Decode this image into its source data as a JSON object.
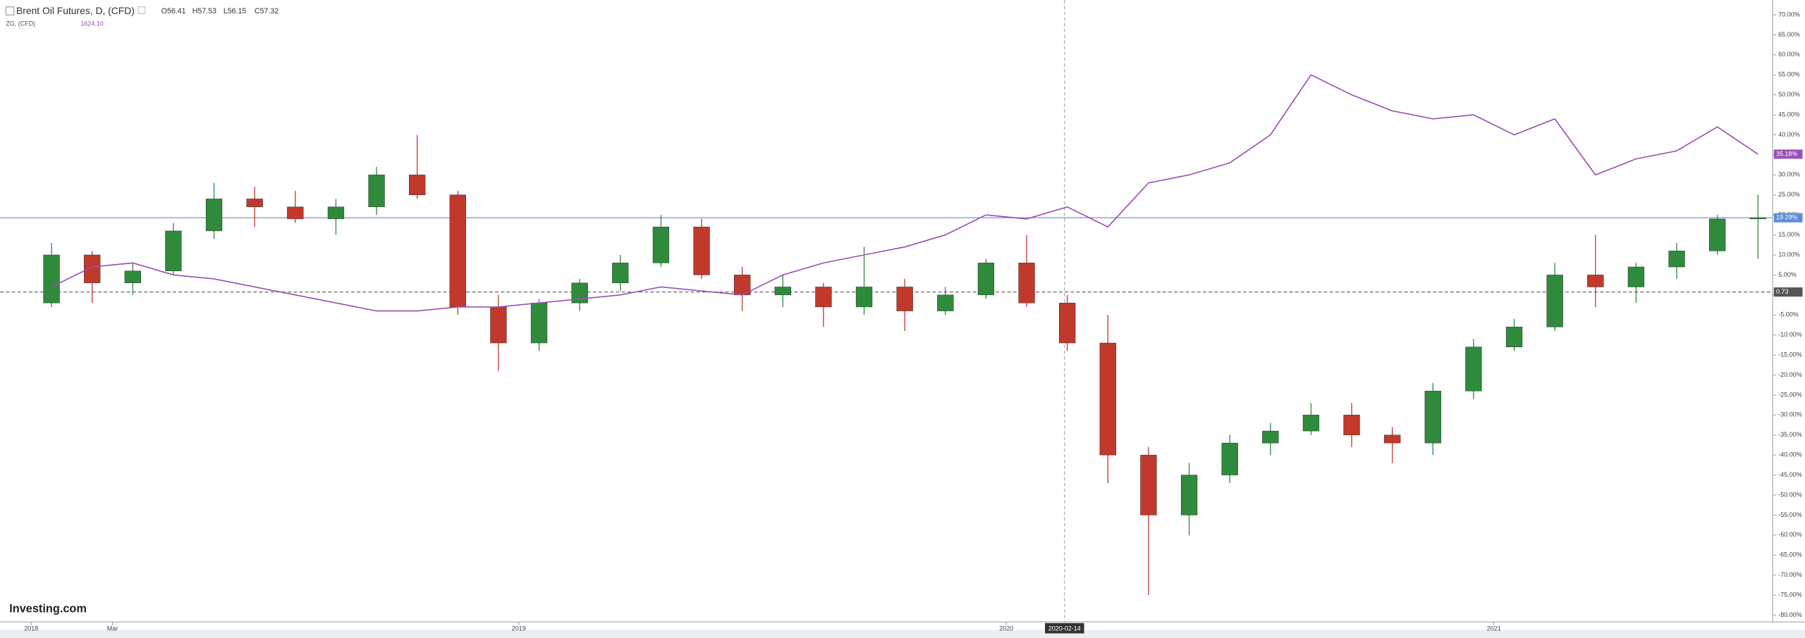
{
  "chart_data": {
    "type": "candlestick",
    "title": "Brent Oil Futures, D, (CFD)",
    "quote": [
      "O56.41",
      "H57.53",
      "L56.15",
      "C57.32"
    ],
    "x": [
      "2018-01",
      "2018-02",
      "2018-03",
      "2018-04",
      "2018-05",
      "2018-06",
      "2018-07",
      "2018-08",
      "2018-09",
      "2018-10",
      "2018-11",
      "2018-12",
      "2019-01",
      "2019-02",
      "2019-03",
      "2019-04",
      "2019-05",
      "2019-06",
      "2019-07",
      "2019-08",
      "2019-09",
      "2019-10",
      "2019-11",
      "2019-12",
      "2020-01",
      "2020-02",
      "2020-03",
      "2020-04",
      "2020-05",
      "2020-06",
      "2020-07",
      "2020-08",
      "2020-09",
      "2020-10",
      "2020-11",
      "2020-12",
      "2021-01",
      "2021-02",
      "2021-03",
      "2021-04",
      "2021-05",
      "2021-06",
      "2021-07"
    ],
    "series": [
      {
        "name": "Brent Oil Futures, D, (CFD)",
        "type": "candlestick",
        "up_color": "#2f8a3c",
        "down_color": "#c0392b",
        "open": [
          -2,
          10,
          3,
          6,
          16,
          24,
          22,
          19,
          22,
          30,
          25,
          -3,
          -12,
          -2,
          3,
          8,
          17,
          5,
          0,
          2,
          -3,
          2,
          -4,
          0,
          8,
          -2,
          -12,
          -40,
          -55,
          -45,
          -37,
          -34,
          -30,
          -35,
          -37,
          -24,
          -13,
          -8,
          5,
          2,
          7,
          11,
          19
        ],
        "high": [
          13,
          11,
          8,
          18,
          28,
          27,
          26,
          24,
          32,
          40,
          26,
          0,
          -1,
          4,
          10,
          20,
          19,
          7,
          5,
          3,
          12,
          4,
          2,
          9,
          15,
          0,
          -5,
          -38,
          -42,
          -35,
          -32,
          -27,
          -27,
          -33,
          -22,
          -11,
          -6,
          8,
          15,
          8,
          13,
          20,
          25
        ],
        "low": [
          -3,
          -2,
          0,
          5,
          14,
          17,
          18,
          15,
          20,
          24,
          -5,
          -19,
          -14,
          -4,
          1,
          7,
          4,
          -4,
          -3,
          -8,
          -5,
          -9,
          -5,
          -1,
          -3,
          -14,
          -47,
          -75,
          -60,
          -47,
          -40,
          -35,
          -38,
          -42,
          -40,
          -26,
          -14,
          -9,
          -3,
          -2,
          4,
          10,
          9
        ],
        "close": [
          10,
          3,
          6,
          16,
          24,
          22,
          19,
          22,
          30,
          25,
          -3,
          -12,
          -2,
          3,
          8,
          17,
          5,
          0,
          2,
          -3,
          2,
          -4,
          0,
          8,
          -2,
          -12,
          -40,
          -55,
          -45,
          -37,
          -34,
          -30,
          -35,
          -37,
          -24,
          -13,
          -8,
          5,
          2,
          7,
          11,
          19,
          19.29
        ]
      },
      {
        "name": "ZG, (CFD)",
        "type": "line",
        "color": "#9b4fb3",
        "quote": "1624.10",
        "values": [
          2,
          7,
          8,
          5,
          4,
          2,
          0,
          -2,
          -4,
          -4,
          -3,
          -3,
          -2,
          -1,
          0,
          2,
          1,
          0,
          5,
          8,
          10,
          12,
          15,
          20,
          19,
          22,
          17,
          28,
          30,
          33,
          40,
          55,
          50,
          46,
          44,
          45,
          40,
          44,
          30,
          34,
          36,
          42,
          35.18
        ]
      }
    ],
    "ylim": [
      -81.7,
      73.7
    ],
    "yticks": [
      {
        "value": 70,
        "label": "70.00%"
      },
      {
        "value": 65,
        "label": "65.00%"
      },
      {
        "value": 60,
        "label": "60.00%"
      },
      {
        "value": 55,
        "label": "55.00%"
      },
      {
        "value": 50,
        "label": "50.00%"
      },
      {
        "value": 45,
        "label": "45.00%"
      },
      {
        "value": 40,
        "label": "40.00%"
      },
      {
        "value": 35,
        "label": "35.00%"
      },
      {
        "value": 30,
        "label": "30.00%"
      },
      {
        "value": 25,
        "label": "25.00%"
      },
      {
        "value": 20,
        "label": "20.00%"
      },
      {
        "value": 15,
        "label": "15.00%"
      },
      {
        "value": 10,
        "label": "10.00%"
      },
      {
        "value": 5,
        "label": "5.00%"
      },
      {
        "value": 0,
        "label": "0.00%"
      },
      {
        "value": -5,
        "label": "-5.00%"
      },
      {
        "value": -10,
        "label": "-10.00%"
      },
      {
        "value": -15,
        "label": "-15.00%"
      },
      {
        "value": -20,
        "label": "-20.00%"
      },
      {
        "value": -25,
        "label": "-25.00%"
      },
      {
        "value": -30,
        "label": "-30.00%"
      },
      {
        "value": -35,
        "label": "-35.00%"
      },
      {
        "value": -40,
        "label": "-40.00%"
      },
      {
        "value": -45,
        "label": "-45.00%"
      },
      {
        "value": -50,
        "label": "-50.00%"
      },
      {
        "value": -55,
        "label": "-55.00%"
      },
      {
        "value": -60,
        "label": "-60.00%"
      },
      {
        "value": -65,
        "label": "-65.00%"
      },
      {
        "value": -70,
        "label": "-70.00%"
      },
      {
        "value": -75,
        "label": "-75.00%"
      },
      {
        "value": -80,
        "label": "-80.00%"
      }
    ],
    "xticks": [
      {
        "value": "2018-01",
        "label": "2018"
      },
      {
        "value": "2018-03",
        "label": "Mar"
      },
      {
        "value": "2019-01",
        "label": "2019"
      },
      {
        "value": "2020-01",
        "label": "2020"
      },
      {
        "value": "2021-01",
        "label": "2021"
      }
    ],
    "hlines": [
      {
        "value": 19.29,
        "label": "19.29%",
        "color": "#5b8fd6",
        "style": "solid"
      },
      {
        "value": 0.73,
        "label": "0.73",
        "color": "#555555",
        "style": "dashed"
      }
    ],
    "last_label": {
      "value": 35.18,
      "label": "35.18%"
    },
    "crosshair": "2020-02-14",
    "logo": "Investing.com"
  }
}
